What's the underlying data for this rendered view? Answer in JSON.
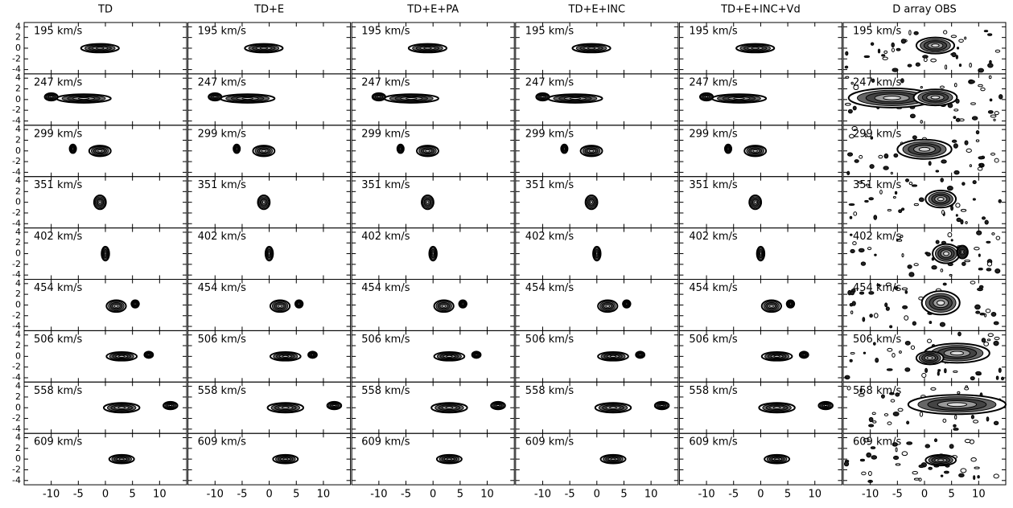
{
  "columns": [
    "TD",
    "TD+E",
    "TD+E+PA",
    "TD+E+INC",
    "TD+E+INC+Vd",
    "D array OBS"
  ],
  "channels": [
    "195 km/s",
    "247 km/s",
    "299 km/s",
    "351 km/s",
    "402 km/s",
    "454 km/s",
    "506 km/s",
    "558 km/s",
    "609 km/s"
  ],
  "xlim": [
    -15,
    15
  ],
  "xticks": [
    -10,
    -5,
    0,
    5,
    10
  ],
  "ylim": [
    -4.8,
    4.8
  ],
  "yticks": [
    -4,
    -2,
    0,
    2,
    4
  ]
}
